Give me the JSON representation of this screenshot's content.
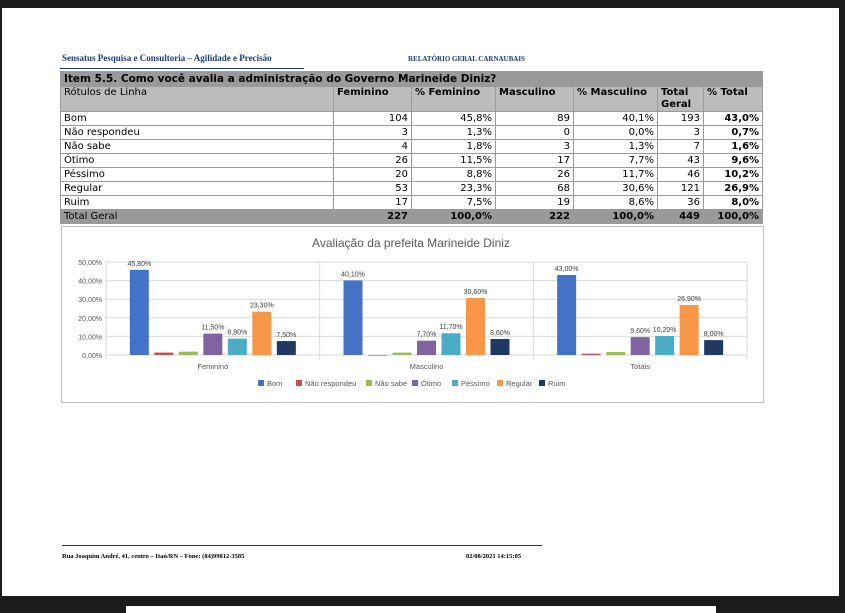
{
  "header": {
    "company": "Sensatus Pesquisa e Consultoria – Agilidade e Precisão",
    "report_title": "RELATÓRIO GERAL CARNAUBAIS"
  },
  "table": {
    "title": "Item 5.5. Como você avalia a administração do Governo Marineide Diniz?",
    "columns": [
      "Rótulos de Linha",
      "Feminino",
      "% Feminino",
      "Masculino",
      "% Masculino",
      "Total Geral",
      "% Total"
    ],
    "rows": [
      {
        "label": "Bom",
        "fem": "104",
        "pct_fem": "45,8%",
        "masc": "89",
        "pct_masc": "40,1%",
        "total": "193",
        "pct_total": "43,0%"
      },
      {
        "label": "Não respondeu",
        "fem": "3",
        "pct_fem": "1,3%",
        "masc": "0",
        "pct_masc": "0,0%",
        "total": "3",
        "pct_total": "0,7%"
      },
      {
        "label": "Não sabe",
        "fem": "4",
        "pct_fem": "1,8%",
        "masc": "3",
        "pct_masc": "1,3%",
        "total": "7",
        "pct_total": "1,6%"
      },
      {
        "label": "Ótimo",
        "fem": "26",
        "pct_fem": "11,5%",
        "masc": "17",
        "pct_masc": "7,7%",
        "total": "43",
        "pct_total": "9,6%"
      },
      {
        "label": "Péssimo",
        "fem": "20",
        "pct_fem": "8,8%",
        "masc": "26",
        "pct_masc": "11,7%",
        "total": "46",
        "pct_total": "10,2%"
      },
      {
        "label": "Regular",
        "fem": "53",
        "pct_fem": "23,3%",
        "masc": "68",
        "pct_masc": "30,6%",
        "total": "121",
        "pct_total": "26,9%"
      },
      {
        "label": "Ruim",
        "fem": "17",
        "pct_fem": "7,5%",
        "masc": "19",
        "pct_masc": "8,6%",
        "total": "36",
        "pct_total": "8,0%"
      }
    ],
    "total": {
      "label": "Total Geral",
      "fem": "227",
      "pct_fem": "100,0%",
      "masc": "222",
      "pct_masc": "100,0%",
      "total": "449",
      "pct_total": "100,0%"
    }
  },
  "chart_data": {
    "type": "bar",
    "title": "Avaliação da prefeita Marineide Diniz",
    "categories": [
      "Feminino",
      "Masculino",
      "Totais"
    ],
    "ylim": [
      0,
      50
    ],
    "yticks": [
      "0,00%",
      "10,00%",
      "20,00%",
      "30,00%",
      "40,00%",
      "50,00%"
    ],
    "grid": true,
    "legend_position": "bottom",
    "series": [
      {
        "name": "Bom",
        "color": "#4472c4",
        "values": [
          45.8,
          40.1,
          43.0
        ],
        "labels": [
          "45,80%",
          "40,10%",
          "43,00%"
        ]
      },
      {
        "name": "Não respondeu",
        "color": "#c0504d",
        "values": [
          1.3,
          0.0,
          0.7
        ],
        "labels": [
          "",
          "",
          ""
        ]
      },
      {
        "name": "Não sabe",
        "color": "#9bbb59",
        "values": [
          1.8,
          1.3,
          1.6
        ],
        "labels": [
          "",
          "",
          ""
        ]
      },
      {
        "name": "Ótimo",
        "color": "#8064a2",
        "values": [
          11.5,
          7.7,
          9.6
        ],
        "labels": [
          "11,50%",
          "7,70%",
          "9,60%"
        ]
      },
      {
        "name": "Péssimo",
        "color": "#4bacc6",
        "values": [
          8.8,
          11.7,
          10.2
        ],
        "labels": [
          "8,80%",
          "11,70%",
          "10,20%"
        ]
      },
      {
        "name": "Regular",
        "color": "#f79646",
        "values": [
          23.3,
          30.6,
          26.9
        ],
        "labels": [
          "23,30%",
          "30,60%",
          "26,90%"
        ]
      },
      {
        "name": "Ruim",
        "color": "#1f3864",
        "values": [
          7.5,
          8.6,
          8.0
        ],
        "labels": [
          "7,50%",
          "8,60%",
          "8,00%"
        ]
      }
    ]
  },
  "footer": {
    "address": "Rua Joaquim André, 41, centro – Itaú/RN – Fone: (84)99812-3585",
    "datetime": "02/08/2021 14:15:05"
  }
}
